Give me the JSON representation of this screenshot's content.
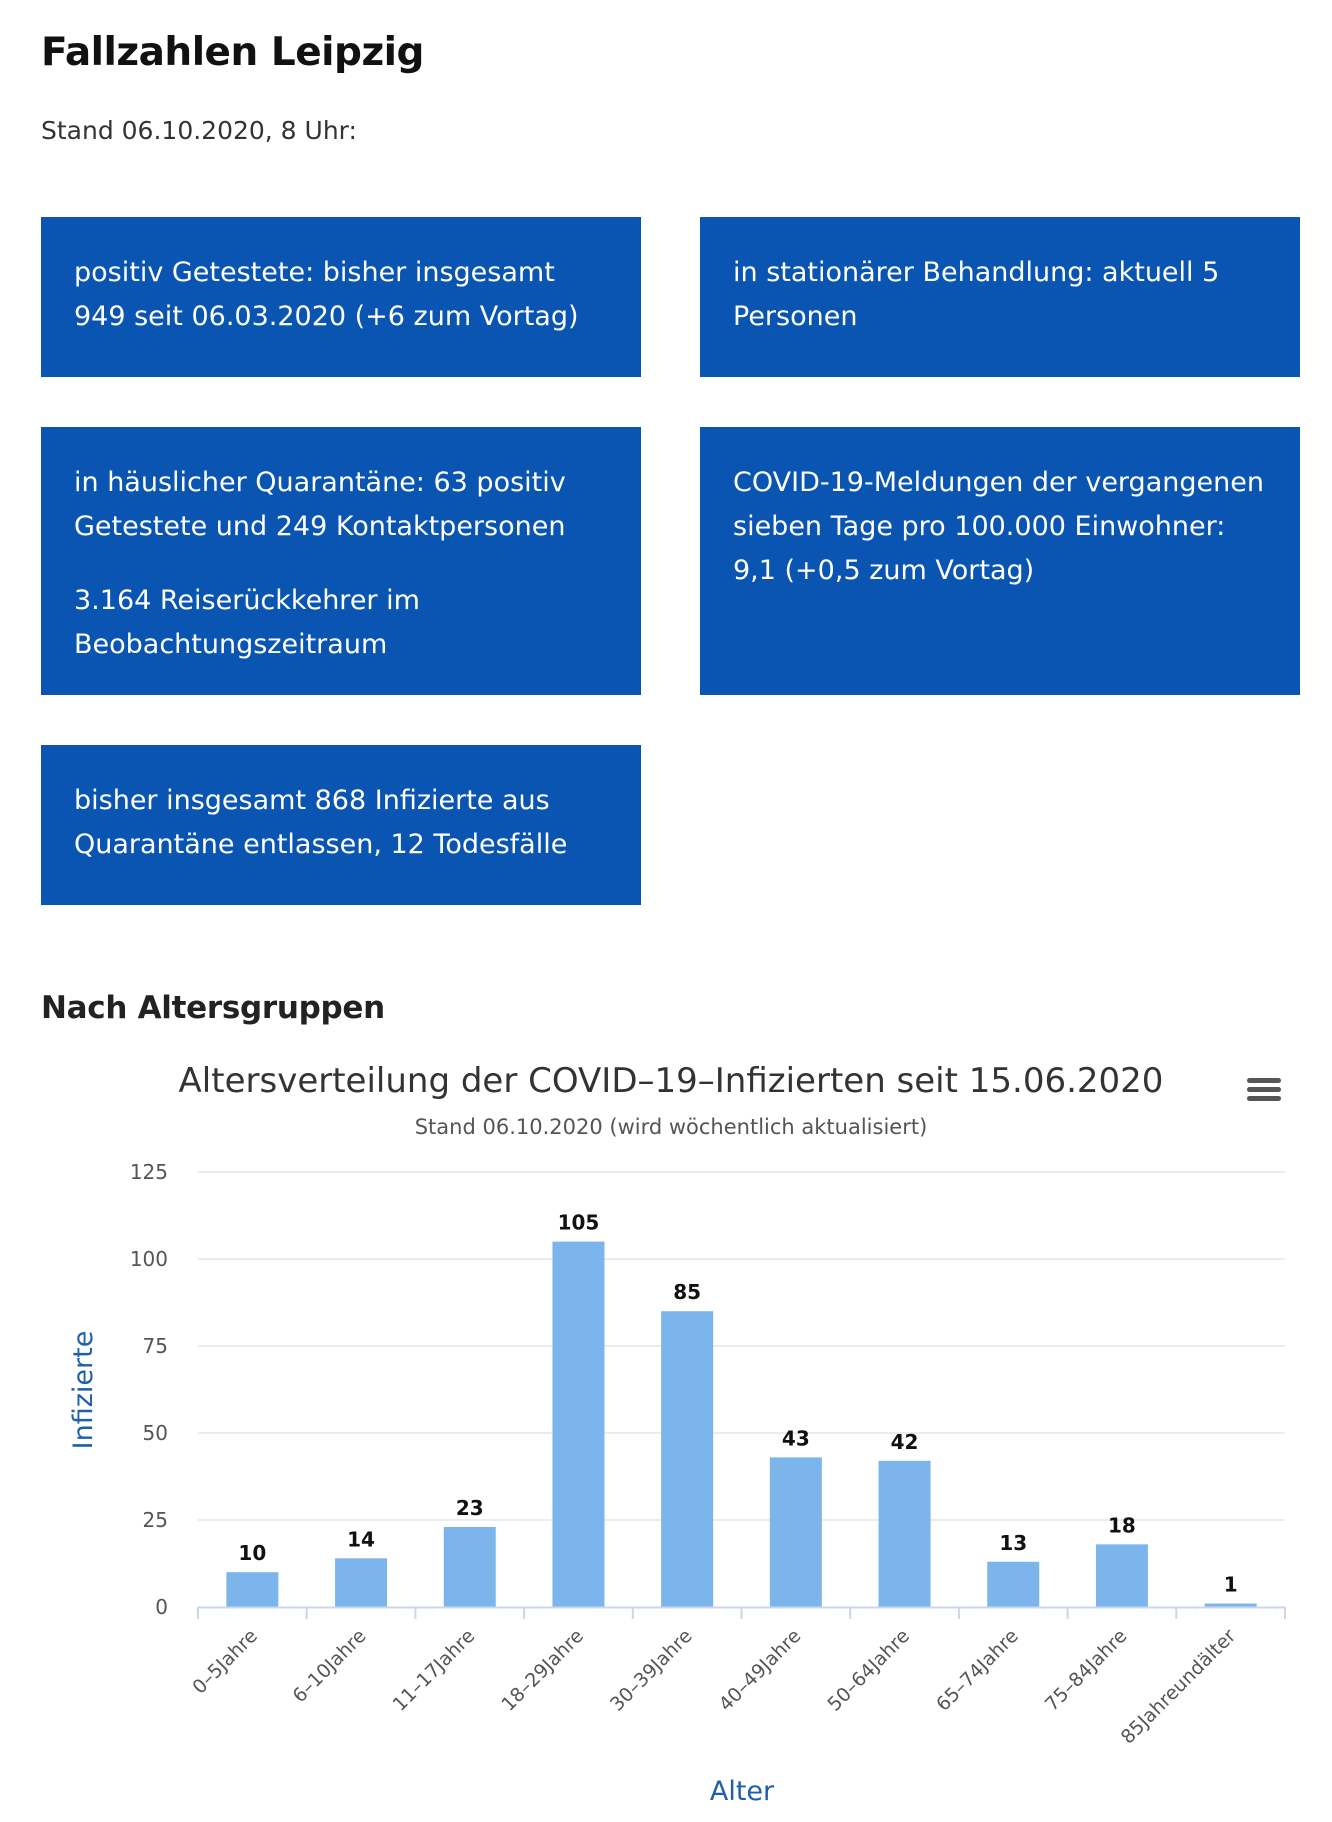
{
  "page": {
    "title": "Fallzahlen Leipzig",
    "stand": "Stand 06.10.2020, 8 Uhr:"
  },
  "cards": [
    {
      "paragraphs": [
        "positiv Getestete: bisher insgesamt 949 seit 06.03.2020 (+6 zum Vortag)"
      ]
    },
    {
      "paragraphs": [
        "in stationärer Behandlung: aktuell 5 Personen"
      ]
    },
    {
      "paragraphs": [
        "in häuslicher Quarantäne: 63 positiv Getestete und 249 Kontaktpersonen",
        "3.164 Reiserückkehrer im Beobachtungszeitraum"
      ]
    },
    {
      "paragraphs": [
        "COVID-19-Meldungen der vergangenen sieben Tage pro 100.000 Einwohner: 9,1 (+0,5 zum Vortag)"
      ]
    },
    {
      "paragraphs": [
        "bisher insgesamt 868 Infizierte aus Quarantäne entlassen, 12 Todesfälle"
      ]
    }
  ],
  "section": {
    "heading": "Nach Altersgruppen"
  },
  "chart_data": {
    "type": "bar",
    "title": "Altersverteilung der COVID–19–Infizierten seit 15.06.2020",
    "subtitle": "Stand 06.10.2020 (wird wöchentlich aktualisiert)",
    "xlabel": "Alter",
    "ylabel": "Infizierte",
    "categories": [
      "0–5Jahre",
      "6–10Jahre",
      "11–17Jahre",
      "18–29Jahre",
      "30–39Jahre",
      "40–49Jahre",
      "50–64Jahre",
      "65–74Jahre",
      "75–84Jahre",
      "85Jahreundälter"
    ],
    "values": [
      10,
      14,
      23,
      105,
      85,
      43,
      42,
      13,
      18,
      1
    ],
    "ylim": [
      0,
      125
    ],
    "yticks": [
      0,
      25,
      50,
      75,
      100,
      125
    ],
    "grid": true,
    "legend": "none",
    "data_labels": true,
    "colors": {
      "bar": "#7cb5ec",
      "axis_title": "#1f5ea8",
      "grid": "#e6e6e6"
    }
  },
  "icons": {
    "chart_menu": "hamburger-menu-icon"
  }
}
